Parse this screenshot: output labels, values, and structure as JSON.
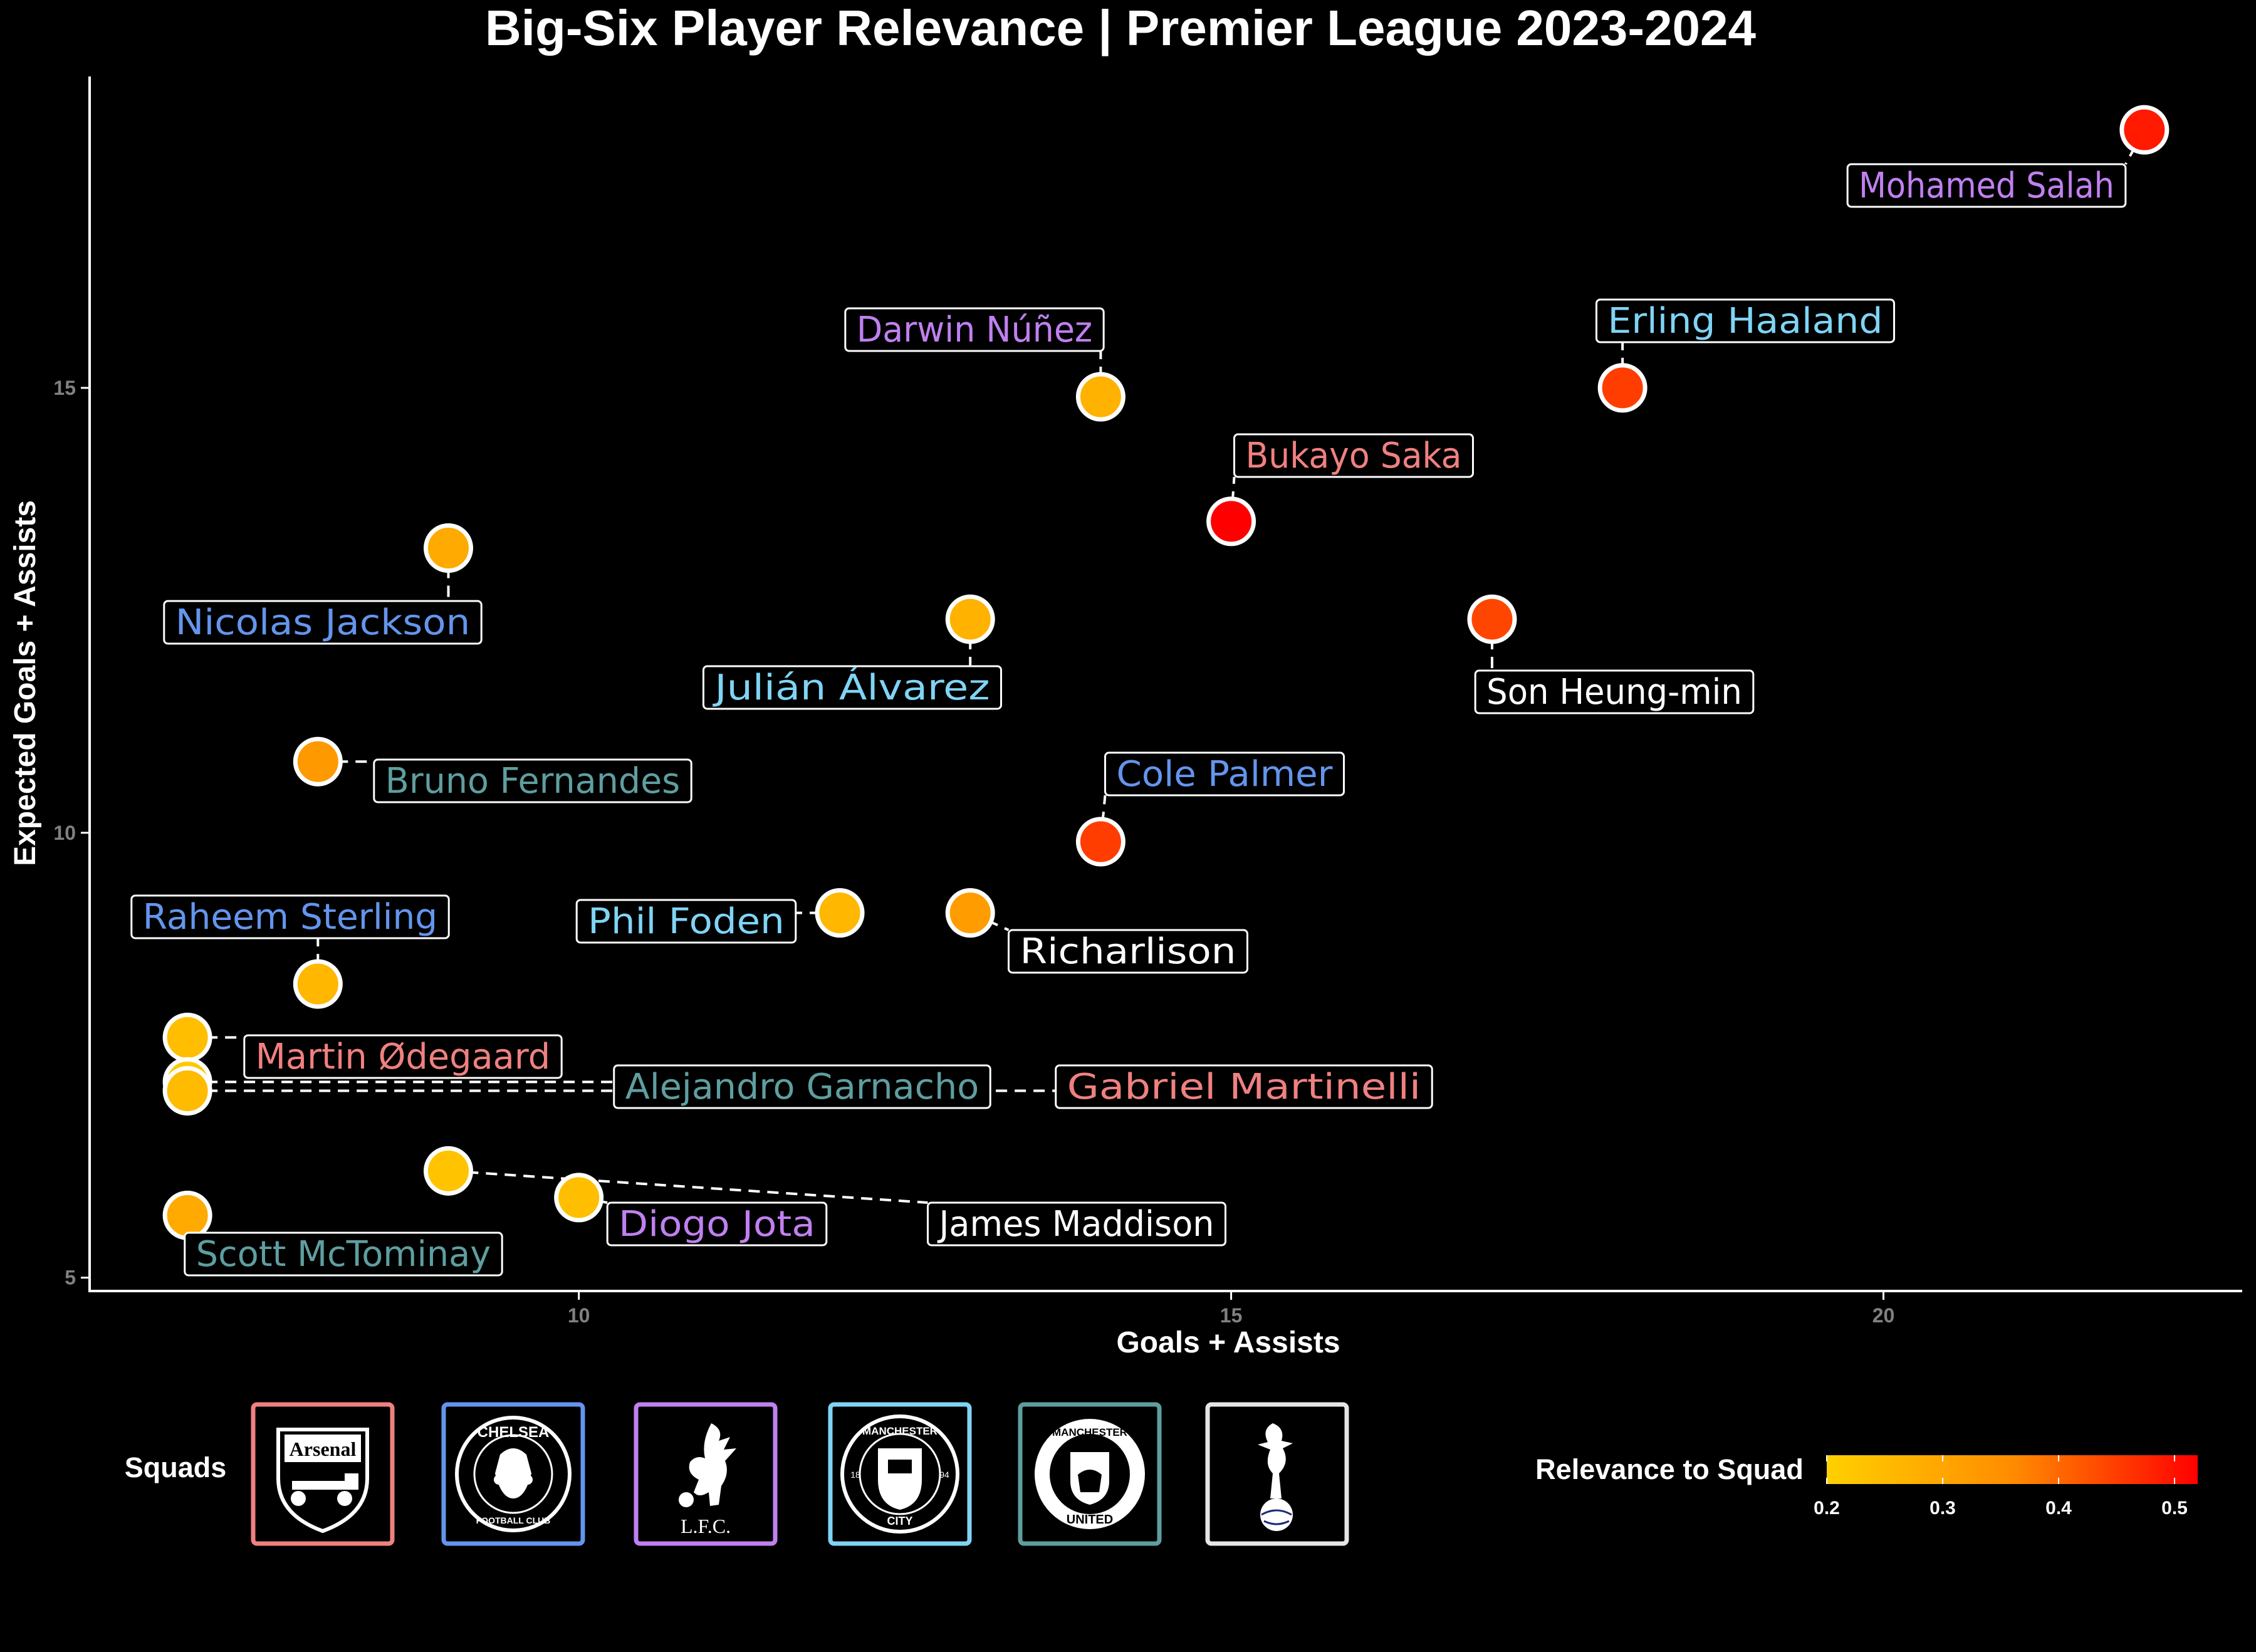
{
  "chart_data": {
    "type": "scatter",
    "title": "Big-Six Player Relevance | Premier League 2023-2024",
    "xlabel": "Goals + Assists",
    "ylabel": "Expected Goals + Assists",
    "xlim": [
      6.25,
      22.75
    ],
    "ylim": [
      4.85,
      18.5
    ],
    "x_ticks": [
      10,
      15,
      20
    ],
    "y_ticks": [
      5,
      10,
      15
    ],
    "grid": false,
    "points": [
      {
        "player": "Mohamed Salah",
        "squad": "Liverpool",
        "x": 22,
        "y": 17.9,
        "relevance": 0.49
      },
      {
        "player": "Erling Haaland",
        "squad": "Manchester City",
        "x": 18,
        "y": 15.0,
        "relevance": 0.45
      },
      {
        "player": "Darwin Núñez",
        "squad": "Liverpool",
        "x": 14,
        "y": 14.9,
        "relevance": 0.27
      },
      {
        "player": "Bukayo Saka",
        "squad": "Arsenal",
        "x": 15,
        "y": 13.5,
        "relevance": 0.52
      },
      {
        "player": "Nicolas Jackson",
        "squad": "Chelsea",
        "x": 9,
        "y": 13.2,
        "relevance": 0.29
      },
      {
        "player": "Julián Álvarez",
        "squad": "Manchester City",
        "x": 13,
        "y": 12.4,
        "relevance": 0.27
      },
      {
        "player": "Son Heung-min",
        "squad": "Tottenham",
        "x": 17,
        "y": 12.4,
        "relevance": 0.44
      },
      {
        "player": "Bruno Fernandes",
        "squad": "Manchester United",
        "x": 8,
        "y": 10.8,
        "relevance": 0.33
      },
      {
        "player": "Cole Palmer",
        "squad": "Chelsea",
        "x": 14,
        "y": 9.9,
        "relevance": 0.45
      },
      {
        "player": "Phil Foden",
        "squad": "Manchester City",
        "x": 12,
        "y": 9.1,
        "relevance": 0.26
      },
      {
        "player": "Richarlison",
        "squad": "Tottenham",
        "x": 13,
        "y": 9.1,
        "relevance": 0.32
      },
      {
        "player": "Raheem Sterling",
        "squad": "Chelsea",
        "x": 8,
        "y": 8.3,
        "relevance": 0.26
      },
      {
        "player": "Martin Ødegaard",
        "squad": "Arsenal",
        "x": 7,
        "y": 7.7,
        "relevance": 0.24
      },
      {
        "player": "Alejandro Garnacho",
        "squad": "Manchester United",
        "x": 7,
        "y": 7.2,
        "relevance": 0.22
      },
      {
        "player": "Gabriel Martinelli",
        "squad": "Arsenal",
        "x": 7,
        "y": 7.1,
        "relevance": 0.25
      },
      {
        "player": "James Maddison",
        "squad": "Tottenham",
        "x": 9,
        "y": 6.2,
        "relevance": 0.23
      },
      {
        "player": "Diogo Jota",
        "squad": "Liverpool",
        "x": 10,
        "y": 5.9,
        "relevance": 0.24
      },
      {
        "player": "Scott McTominay",
        "squad": "Manchester United",
        "x": 7,
        "y": 5.7,
        "relevance": 0.29
      }
    ]
  },
  "squads_legend": {
    "title": "Squads",
    "items": [
      {
        "name": "Arsenal",
        "color": "#F08080",
        "crest_text": "Arsenal",
        "icon": "arsenal-crest-icon"
      },
      {
        "name": "Chelsea",
        "color": "#6495ED",
        "crest_text": "CHELSEA",
        "crest_sub": "FOOTBALL CLUB",
        "icon": "chelsea-crest-icon"
      },
      {
        "name": "Liverpool",
        "color": "#C080F0",
        "crest_text": "L.F.C.",
        "icon": "liverpool-crest-icon"
      },
      {
        "name": "Manchester City",
        "color": "#7FD4F5",
        "crest_text": "MANCHESTER",
        "crest_sub": "CITY",
        "crest_left": "18",
        "crest_right": "94",
        "icon": "man-city-crest-icon"
      },
      {
        "name": "Manchester United",
        "color": "#5F9EA0",
        "crest_text": "MANCHESTER",
        "crest_sub": "UNITED",
        "icon": "man-united-crest-icon"
      },
      {
        "name": "Tottenham",
        "color": "#FFFFFF",
        "icon": "tottenham-crest-icon"
      }
    ]
  },
  "relevance_legend": {
    "title": "Relevance to Squad",
    "min": 0.2,
    "max": 0.52,
    "ticks": [
      0.2,
      0.3,
      0.4,
      0.5
    ],
    "tick_labels": [
      "0.2",
      "0.3",
      "0.4",
      "0.5"
    ],
    "color_low": "#FFD000",
    "color_high": "#FF0000"
  },
  "colors": {
    "background": "#000000",
    "point_stroke": "#FFFFFF",
    "axis": "#FFFFFF",
    "tick_text": "#808080"
  }
}
